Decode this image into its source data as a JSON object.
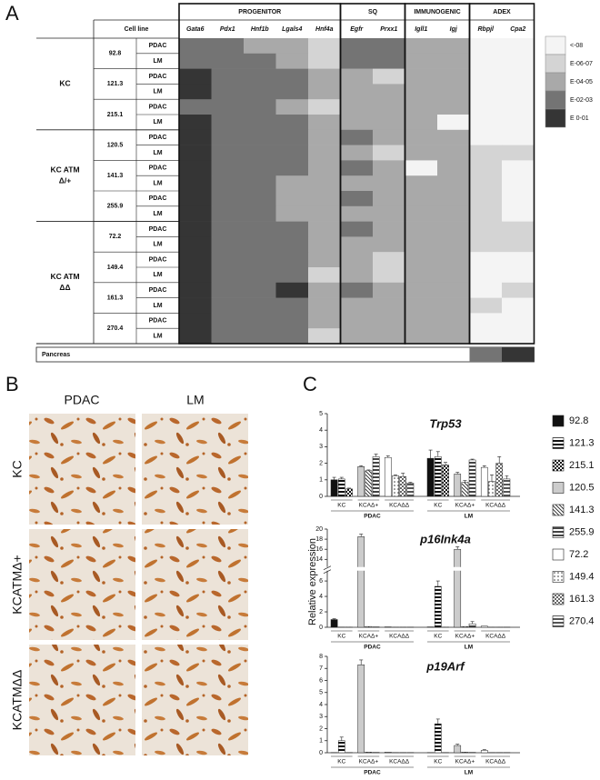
{
  "panel_labels": [
    "A",
    "B",
    "C"
  ],
  "heatmap": {
    "cell_line_header": "Cell line",
    "column_groups": [
      {
        "label": "PROGENITOR",
        "genes": [
          "Gata6",
          "Pdx1",
          "Hnf1b",
          "Lgals4",
          "Hnf4a"
        ]
      },
      {
        "label": "SQ",
        "genes": [
          "Egfr",
          "Prxx1"
        ]
      },
      {
        "label": "IMMUNOGENIC",
        "genes": [
          "Igll1",
          "Igj"
        ]
      },
      {
        "label": "ADEX",
        "genes": [
          "Rbpjl",
          "Cpa2"
        ]
      }
    ],
    "legend": [
      {
        "label": "<-08",
        "color": "#f4f4f4"
      },
      {
        "label": "E-06-07",
        "color": "#d4d4d4"
      },
      {
        "label": "E-04-05",
        "color": "#a9a9a9"
      },
      {
        "label": "E-02-03",
        "color": "#747474"
      },
      {
        "label": "E 0-01",
        "color": "#353535"
      }
    ],
    "groups": [
      {
        "label_lines": [
          "KC"
        ],
        "lines": [
          {
            "name": "92.8",
            "rows": [
              {
                "tissue": "PDAC",
                "levels": [
                  3,
                  3,
                  2,
                  2,
                  1,
                  3,
                  3,
                  2,
                  2,
                  0,
                  0
                ]
              },
              {
                "tissue": "LM",
                "levels": [
                  3,
                  3,
                  3,
                  2,
                  1,
                  3,
                  3,
                  2,
                  2,
                  0,
                  0
                ]
              }
            ]
          },
          {
            "name": "121.3",
            "rows": [
              {
                "tissue": "PDAC",
                "levels": [
                  4,
                  3,
                  3,
                  3,
                  2,
                  2,
                  1,
                  2,
                  2,
                  0,
                  0
                ]
              },
              {
                "tissue": "LM",
                "levels": [
                  4,
                  3,
                  3,
                  3,
                  2,
                  2,
                  2,
                  2,
                  2,
                  0,
                  0
                ]
              }
            ]
          },
          {
            "name": "215.1",
            "rows": [
              {
                "tissue": "PDAC",
                "levels": [
                  3,
                  3,
                  3,
                  2,
                  1,
                  2,
                  2,
                  2,
                  2,
                  0,
                  0
                ]
              },
              {
                "tissue": "LM",
                "levels": [
                  4,
                  3,
                  3,
                  3,
                  2,
                  2,
                  2,
                  2,
                  0,
                  0,
                  0
                ]
              }
            ]
          }
        ]
      },
      {
        "label_lines": [
          "KC ATM",
          "Δ/+"
        ],
        "lines": [
          {
            "name": "120.5",
            "rows": [
              {
                "tissue": "PDAC",
                "levels": [
                  4,
                  3,
                  3,
                  3,
                  2,
                  3,
                  2,
                  2,
                  2,
                  0,
                  0
                ]
              },
              {
                "tissue": "LM",
                "levels": [
                  4,
                  3,
                  3,
                  3,
                  2,
                  2,
                  1,
                  2,
                  2,
                  1,
                  1
                ]
              }
            ]
          },
          {
            "name": "141.3",
            "rows": [
              {
                "tissue": "PDAC",
                "levels": [
                  4,
                  3,
                  3,
                  3,
                  2,
                  3,
                  2,
                  0,
                  2,
                  1,
                  0
                ]
              },
              {
                "tissue": "LM",
                "levels": [
                  4,
                  3,
                  3,
                  2,
                  2,
                  2,
                  2,
                  2,
                  2,
                  1,
                  0
                ]
              }
            ]
          },
          {
            "name": "255.9",
            "rows": [
              {
                "tissue": "PDAC",
                "levels": [
                  4,
                  3,
                  3,
                  2,
                  2,
                  3,
                  2,
                  2,
                  2,
                  1,
                  0
                ]
              },
              {
                "tissue": "LM",
                "levels": [
                  4,
                  3,
                  3,
                  2,
                  2,
                  2,
                  2,
                  2,
                  2,
                  1,
                  0
                ]
              }
            ]
          }
        ]
      },
      {
        "label_lines": [
          "KC ATM",
          "ΔΔ"
        ],
        "lines": [
          {
            "name": "72.2",
            "rows": [
              {
                "tissue": "PDAC",
                "levels": [
                  4,
                  3,
                  3,
                  3,
                  2,
                  3,
                  2,
                  2,
                  2,
                  1,
                  1
                ]
              },
              {
                "tissue": "LM",
                "levels": [
                  4,
                  3,
                  3,
                  3,
                  2,
                  2,
                  2,
                  2,
                  2,
                  1,
                  1
                ]
              }
            ]
          },
          {
            "name": "149.4",
            "rows": [
              {
                "tissue": "PDAC",
                "levels": [
                  4,
                  3,
                  3,
                  3,
                  2,
                  2,
                  1,
                  2,
                  2,
                  0,
                  0
                ]
              },
              {
                "tissue": "LM",
                "levels": [
                  4,
                  3,
                  3,
                  3,
                  1,
                  2,
                  1,
                  2,
                  2,
                  0,
                  0
                ]
              }
            ]
          },
          {
            "name": "161.3",
            "rows": [
              {
                "tissue": "PDAC",
                "levels": [
                  4,
                  3,
                  3,
                  4,
                  2,
                  3,
                  2,
                  2,
                  2,
                  0,
                  1
                ]
              },
              {
                "tissue": "LM",
                "levels": [
                  4,
                  3,
                  3,
                  3,
                  2,
                  2,
                  2,
                  2,
                  2,
                  1,
                  0
                ]
              }
            ]
          },
          {
            "name": "270.4",
            "rows": [
              {
                "tissue": "PDAC",
                "levels": [
                  4,
                  3,
                  3,
                  3,
                  2,
                  2,
                  2,
                  2,
                  2,
                  0,
                  0
                ]
              },
              {
                "tissue": "LM",
                "levels": [
                  4,
                  3,
                  3,
                  3,
                  1,
                  2,
                  2,
                  2,
                  2,
                  0,
                  0
                ]
              }
            ]
          }
        ]
      }
    ],
    "pancreas": {
      "label": "Pancreas",
      "levels": [
        null,
        null,
        null,
        null,
        null,
        null,
        null,
        null,
        null,
        3,
        4
      ]
    }
  },
  "images": {
    "columns": [
      "PDAC",
      "LM"
    ],
    "rows": [
      "KC",
      "KCATMΔ+",
      "KCATMΔΔ"
    ]
  },
  "chart_data": {
    "type": "bar",
    "ylabel": "Relative expression",
    "categories": [
      "PDAC",
      "LM"
    ],
    "subgroups": [
      "KC",
      "KCAΔ+",
      "KCAΔΔ"
    ],
    "series": [
      {
        "name": "92.8",
        "color": "#111111",
        "pattern": "solid",
        "group": 0
      },
      {
        "name": "121.3",
        "color": "#111111",
        "pattern": "hstripe",
        "group": 0
      },
      {
        "name": "215.1",
        "color": "#111111",
        "pattern": "checker",
        "group": 0
      },
      {
        "name": "120.5",
        "color": "#cccccc",
        "pattern": "solid",
        "group": 1
      },
      {
        "name": "141.3",
        "color": "#222222",
        "pattern": "diag",
        "group": 1
      },
      {
        "name": "255.9",
        "color": "#444444",
        "pattern": "hstripe",
        "group": 1
      },
      {
        "name": "72.2",
        "color": "#ffffff",
        "pattern": "solid",
        "group": 2
      },
      {
        "name": "149.4",
        "color": "#333333",
        "pattern": "dots",
        "group": 2
      },
      {
        "name": "161.3",
        "color": "#666666",
        "pattern": "checker",
        "group": 2
      },
      {
        "name": "270.4",
        "color": "#555555",
        "pattern": "hstripe",
        "group": 2
      }
    ],
    "panels": [
      {
        "title": "Trp53",
        "ylim": [
          0,
          5
        ],
        "yticks": [
          0,
          1,
          2,
          3,
          4,
          5
        ],
        "values": [
          [
            1.0,
            2.3
          ],
          [
            1.05,
            2.4
          ],
          [
            0.45,
            1.9
          ],
          [
            1.8,
            1.35
          ],
          [
            1.55,
            0.85
          ],
          [
            2.4,
            2.2
          ],
          [
            2.35,
            1.75
          ],
          [
            1.25,
            0.9
          ],
          [
            1.2,
            2.0
          ],
          [
            0.8,
            1.05
          ]
        ],
        "errors": [
          [
            0.15,
            0.5
          ],
          [
            0.1,
            0.3
          ],
          [
            0.05,
            0.15
          ],
          [
            0.05,
            0.1
          ],
          [
            0.05,
            0.1
          ],
          [
            0.15,
            0.05
          ],
          [
            0.1,
            0.1
          ],
          [
            0.05,
            0.4
          ],
          [
            0.2,
            0.4
          ],
          [
            0.05,
            0.2
          ]
        ]
      },
      {
        "title": "p16Ink4a",
        "ylim": [
          0,
          20
        ],
        "ybreak": [
          7,
          13
        ],
        "yticks": [
          0,
          2,
          4,
          6,
          14,
          16,
          18,
          20
        ],
        "values": [
          [
            1.0,
            0.05
          ],
          [
            0.02,
            5.3
          ],
          [
            0.02,
            0.02
          ],
          [
            18.5,
            16
          ],
          [
            0.1,
            0.1
          ],
          [
            0.05,
            0.45
          ],
          [
            0.05,
            0.15
          ],
          [
            0.02,
            0.02
          ],
          [
            0.02,
            0.02
          ],
          [
            0.02,
            0.02
          ]
        ],
        "errors": [
          [
            0.1,
            0
          ],
          [
            0,
            0.7
          ],
          [
            0,
            0
          ],
          [
            0.5,
            0.5
          ],
          [
            0,
            0
          ],
          [
            0,
            0.3
          ],
          [
            0,
            0
          ],
          [
            0,
            0
          ],
          [
            0,
            0
          ],
          [
            0,
            0
          ]
        ]
      },
      {
        "title": "p19Arf",
        "ylim": [
          0,
          8
        ],
        "yticks": [
          0,
          1,
          2,
          3,
          4,
          5,
          6,
          7,
          8
        ],
        "values": [
          [
            0.02,
            0.02
          ],
          [
            1.0,
            2.4
          ],
          [
            0.02,
            0.02
          ],
          [
            7.3,
            0.6
          ],
          [
            0.05,
            0.05
          ],
          [
            0.03,
            0.03
          ],
          [
            0.05,
            0.2
          ],
          [
            0.02,
            0.02
          ],
          [
            0.02,
            0.02
          ],
          [
            0.02,
            0.02
          ]
        ],
        "errors": [
          [
            0,
            0
          ],
          [
            0.3,
            0.4
          ],
          [
            0,
            0
          ],
          [
            0.4,
            0.1
          ],
          [
            0,
            0
          ],
          [
            0,
            0
          ],
          [
            0,
            0.05
          ],
          [
            0,
            0
          ],
          [
            0,
            0
          ],
          [
            0,
            0
          ]
        ]
      }
    ]
  }
}
